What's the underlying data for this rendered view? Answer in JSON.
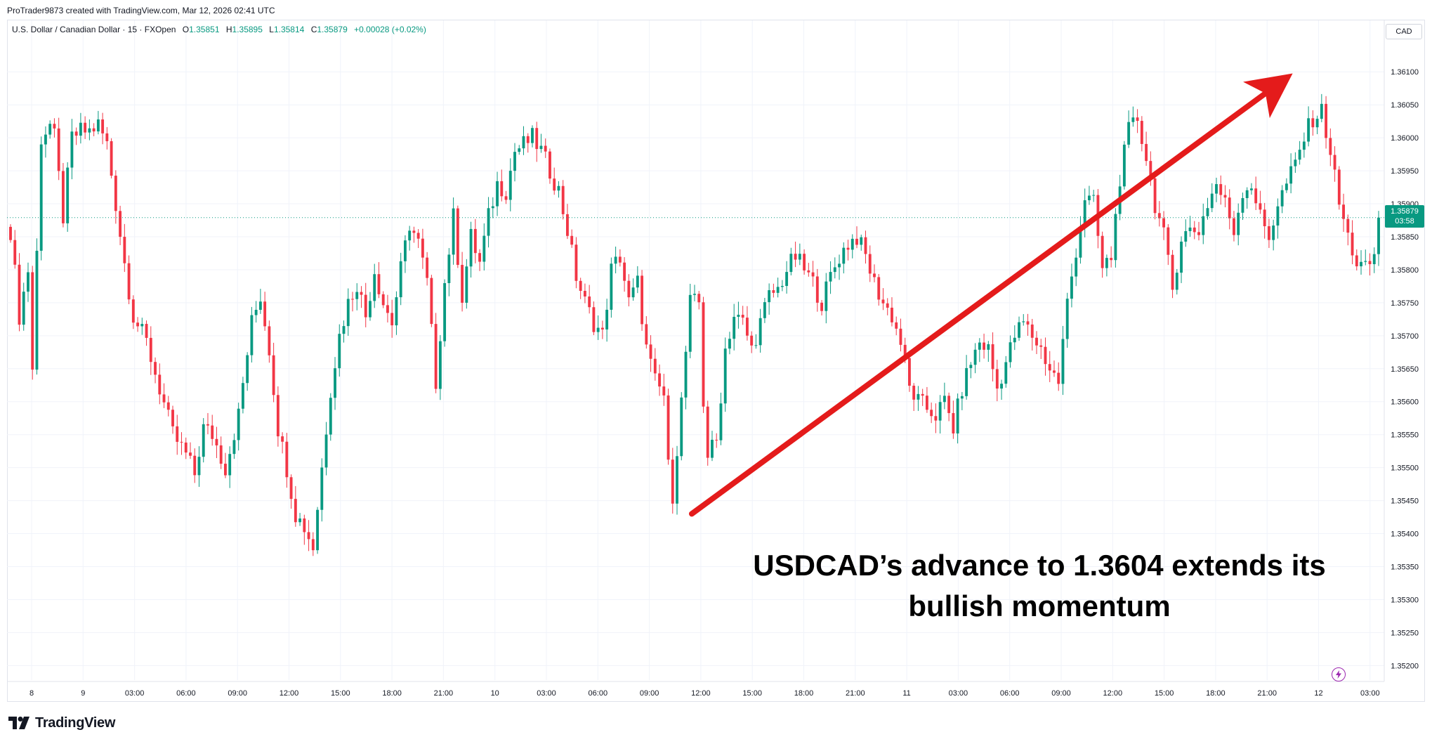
{
  "credit": "ProTrader9873 created with TradingView.com, Mar 12, 2026 02:41 UTC",
  "symbol": {
    "name": "U.S. Dollar / Canadian Dollar · 15 · FXOpen",
    "open_label": "O",
    "open": "1.35851",
    "high_label": "H",
    "high": "1.35895",
    "low_label": "L",
    "low": "1.35814",
    "close_label": "C",
    "close": "1.35879",
    "change": "+0.00028 (+0.02%)"
  },
  "currency": "CAD",
  "price_badge": {
    "price": "1.35879",
    "countdown": "03:58"
  },
  "annotation": {
    "line1": "USDCAD’s advance to 1.3604 extends its",
    "line2": "bullish momentum"
  },
  "footer": {
    "brand": "TradingView"
  },
  "colors": {
    "up": "#089981",
    "down": "#f23645",
    "arrow": "#e41b1b",
    "grid": "#f0f3fa",
    "text": "#131722"
  },
  "chart_data": {
    "type": "candlestick",
    "symbol": "USDCAD",
    "interval": "15",
    "ylim": [
      1.35178,
      1.36178
    ],
    "y_ticks": [
      "1.35200",
      "1.35250",
      "1.35300",
      "1.35350",
      "1.35400",
      "1.35450",
      "1.35500",
      "1.35550",
      "1.35600",
      "1.35650",
      "1.35700",
      "1.35750",
      "1.35800",
      "1.35850",
      "1.35900",
      "1.35950",
      "1.36000",
      "1.36050",
      "1.36100"
    ],
    "x_ticks": [
      "8",
      "9",
      "03:00",
      "06:00",
      "09:00",
      "12:00",
      "15:00",
      "18:00",
      "21:00",
      "10",
      "03:00",
      "06:00",
      "09:00",
      "12:00",
      "15:00",
      "18:00",
      "21:00",
      "11",
      "03:00",
      "06:00",
      "09:00",
      "12:00",
      "15:00",
      "18:00",
      "21:00",
      "12",
      "03:00"
    ],
    "last_price": 1.35879,
    "trend_arrow": {
      "from_price": 1.3543,
      "to_price": 1.3608,
      "label": "bullish momentum"
    },
    "anchors": [
      [
        0,
        1.3586
      ],
      [
        2,
        1.3573
      ],
      [
        4,
        1.358
      ],
      [
        5,
        1.3565
      ],
      [
        7,
        1.36
      ],
      [
        9,
        1.3602
      ],
      [
        10,
        1.36
      ],
      [
        12,
        1.3588
      ],
      [
        14,
        1.36
      ],
      [
        16,
        1.3601
      ],
      [
        18,
        1.3601
      ],
      [
        20,
        1.3602
      ],
      [
        22,
        1.3599
      ],
      [
        24,
        1.359
      ],
      [
        26,
        1.3581
      ],
      [
        28,
        1.3573
      ],
      [
        31,
        1.3569
      ],
      [
        34,
        1.3562
      ],
      [
        37,
        1.3555
      ],
      [
        40,
        1.3552
      ],
      [
        42,
        1.3549
      ],
      [
        44,
        1.3556
      ],
      [
        46,
        1.3555
      ],
      [
        49,
        1.355
      ],
      [
        52,
        1.3558
      ],
      [
        55,
        1.3572
      ],
      [
        57,
        1.3576
      ],
      [
        59,
        1.3568
      ],
      [
        61,
        1.3556
      ],
      [
        63,
        1.355
      ],
      [
        65,
        1.3543
      ],
      [
        67,
        1.3541
      ],
      [
        69,
        1.3538
      ],
      [
        71,
        1.355
      ],
      [
        73,
        1.3562
      ],
      [
        75,
        1.357
      ],
      [
        77,
        1.3575
      ],
      [
        79,
        1.3578
      ],
      [
        81,
        1.3573
      ],
      [
        83,
        1.358
      ],
      [
        85,
        1.3575
      ],
      [
        87,
        1.3572
      ],
      [
        89,
        1.358
      ],
      [
        91,
        1.3587
      ],
      [
        93,
        1.3584
      ],
      [
        95,
        1.3578
      ],
      [
        97,
        1.3563
      ],
      [
        99,
        1.3578
      ],
      [
        101,
        1.3588
      ],
      [
        103,
        1.3576
      ],
      [
        105,
        1.3585
      ],
      [
        107,
        1.3581
      ],
      [
        109,
        1.3588
      ],
      [
        111,
        1.3593
      ],
      [
        113,
        1.3592
      ],
      [
        115,
        1.3598
      ],
      [
        117,
        1.3599
      ],
      [
        119,
        1.36
      ],
      [
        121,
        1.3598
      ],
      [
        123,
        1.3595
      ],
      [
        125,
        1.3592
      ],
      [
        127,
        1.3586
      ],
      [
        129,
        1.3579
      ],
      [
        131,
        1.3575
      ],
      [
        133,
        1.3572
      ],
      [
        135,
        1.357
      ],
      [
        137,
        1.358
      ],
      [
        139,
        1.3582
      ],
      [
        141,
        1.3575
      ],
      [
        143,
        1.3578
      ],
      [
        145,
        1.3568
      ],
      [
        147,
        1.3563
      ],
      [
        149,
        1.3561
      ],
      [
        150,
        1.355
      ],
      [
        151,
        1.3546
      ],
      [
        153,
        1.356
      ],
      [
        155,
        1.3575
      ],
      [
        157,
        1.3575
      ],
      [
        158,
        1.356
      ],
      [
        159,
        1.3552
      ],
      [
        161,
        1.3554
      ],
      [
        163,
        1.3568
      ],
      [
        165,
        1.3573
      ],
      [
        167,
        1.3572
      ],
      [
        169,
        1.3568
      ],
      [
        171,
        1.3572
      ],
      [
        173,
        1.3576
      ],
      [
        175,
        1.3577
      ],
      [
        177,
        1.358
      ],
      [
        179,
        1.3582
      ],
      [
        181,
        1.358
      ],
      [
        183,
        1.3578
      ],
      [
        185,
        1.3575
      ],
      [
        187,
        1.3579
      ],
      [
        189,
        1.3582
      ],
      [
        191,
        1.3584
      ],
      [
        193,
        1.3585
      ],
      [
        195,
        1.3582
      ],
      [
        197,
        1.3578
      ],
      [
        199,
        1.3575
      ],
      [
        201,
        1.3573
      ],
      [
        203,
        1.3569
      ],
      [
        205,
        1.3562
      ],
      [
        207,
        1.356
      ],
      [
        209,
        1.3559
      ],
      [
        211,
        1.3558
      ],
      [
        213,
        1.356
      ],
      [
        215,
        1.3556
      ],
      [
        217,
        1.3562
      ],
      [
        219,
        1.3566
      ],
      [
        221,
        1.3569
      ],
      [
        223,
        1.3568
      ],
      [
        225,
        1.3562
      ],
      [
        227,
        1.3566
      ],
      [
        229,
        1.357
      ],
      [
        231,
        1.3572
      ],
      [
        233,
        1.357
      ],
      [
        235,
        1.3568
      ],
      [
        237,
        1.3565
      ],
      [
        239,
        1.3563
      ],
      [
        241,
        1.3575
      ],
      [
        243,
        1.3583
      ],
      [
        245,
        1.3591
      ],
      [
        247,
        1.359
      ],
      [
        249,
        1.358
      ],
      [
        251,
        1.3582
      ],
      [
        253,
        1.3594
      ],
      [
        255,
        1.3601
      ],
      [
        257,
        1.3603
      ],
      [
        259,
        1.3597
      ],
      [
        261,
        1.359
      ],
      [
        263,
        1.3585
      ],
      [
        265,
        1.3577
      ],
      [
        267,
        1.3585
      ],
      [
        269,
        1.3586
      ],
      [
        271,
        1.3586
      ],
      [
        273,
        1.359
      ],
      [
        275,
        1.3593
      ],
      [
        277,
        1.359
      ],
      [
        279,
        1.3586
      ],
      [
        281,
        1.3592
      ],
      [
        283,
        1.3593
      ],
      [
        285,
        1.3588
      ],
      [
        287,
        1.3585
      ],
      [
        289,
        1.359
      ],
      [
        291,
        1.3593
      ],
      [
        293,
        1.3596
      ],
      [
        295,
        1.36
      ],
      [
        297,
        1.3603
      ],
      [
        299,
        1.3604
      ],
      [
        301,
        1.3598
      ],
      [
        303,
        1.359
      ],
      [
        305,
        1.3585
      ],
      [
        307,
        1.3581
      ],
      [
        309,
        1.358
      ],
      [
        311,
        1.3582
      ],
      [
        312,
        1.3588
      ]
    ]
  }
}
